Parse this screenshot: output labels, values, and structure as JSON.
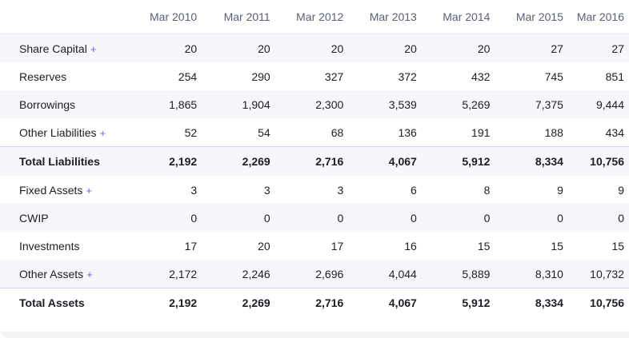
{
  "table": {
    "label_header": "",
    "columns": [
      "Mar 2010",
      "Mar 2011",
      "Mar 2012",
      "Mar 2013",
      "Mar 2014",
      "Mar 2015",
      "Mar 2016"
    ],
    "expand_symbol": "+",
    "rows": [
      {
        "label": "Share Capital",
        "expandable": true,
        "total": false,
        "alt": true,
        "values": [
          "20",
          "20",
          "20",
          "20",
          "20",
          "27",
          "27"
        ]
      },
      {
        "label": "Reserves",
        "expandable": false,
        "total": false,
        "alt": false,
        "values": [
          "254",
          "290",
          "327",
          "372",
          "432",
          "745",
          "851"
        ]
      },
      {
        "label": "Borrowings",
        "expandable": false,
        "total": false,
        "alt": true,
        "values": [
          "1,865",
          "1,904",
          "2,300",
          "3,539",
          "5,269",
          "7,375",
          "9,444"
        ]
      },
      {
        "label": "Other Liabilities",
        "expandable": true,
        "total": false,
        "alt": false,
        "values": [
          "52",
          "54",
          "68",
          "136",
          "191",
          "188",
          "434"
        ]
      },
      {
        "label": "Total Liabilities",
        "expandable": false,
        "total": true,
        "alt": true,
        "values": [
          "2,192",
          "2,269",
          "2,716",
          "4,067",
          "5,912",
          "8,334",
          "10,756"
        ]
      },
      {
        "label": "Fixed Assets",
        "expandable": true,
        "total": false,
        "alt": false,
        "values": [
          "3",
          "3",
          "3",
          "6",
          "8",
          "9",
          "9"
        ]
      },
      {
        "label": "CWIP",
        "expandable": false,
        "total": false,
        "alt": true,
        "values": [
          "0",
          "0",
          "0",
          "0",
          "0",
          "0",
          "0"
        ]
      },
      {
        "label": "Investments",
        "expandable": false,
        "total": false,
        "alt": false,
        "values": [
          "17",
          "20",
          "17",
          "16",
          "15",
          "15",
          "15"
        ]
      },
      {
        "label": "Other Assets",
        "expandable": true,
        "total": false,
        "alt": true,
        "values": [
          "2,172",
          "2,246",
          "2,696",
          "4,044",
          "5,889",
          "8,310",
          "10,732"
        ]
      },
      {
        "label": "Total Assets",
        "expandable": false,
        "total": true,
        "alt": false,
        "values": [
          "2,192",
          "2,269",
          "2,716",
          "4,067",
          "5,912",
          "8,334",
          "10,756"
        ]
      }
    ]
  },
  "colors": {
    "header_text": "#5a5f7a",
    "alt_row_bg": "#f6f6fb",
    "expand_accent": "#6f63e8",
    "total_divider": "#cfdbe8"
  }
}
